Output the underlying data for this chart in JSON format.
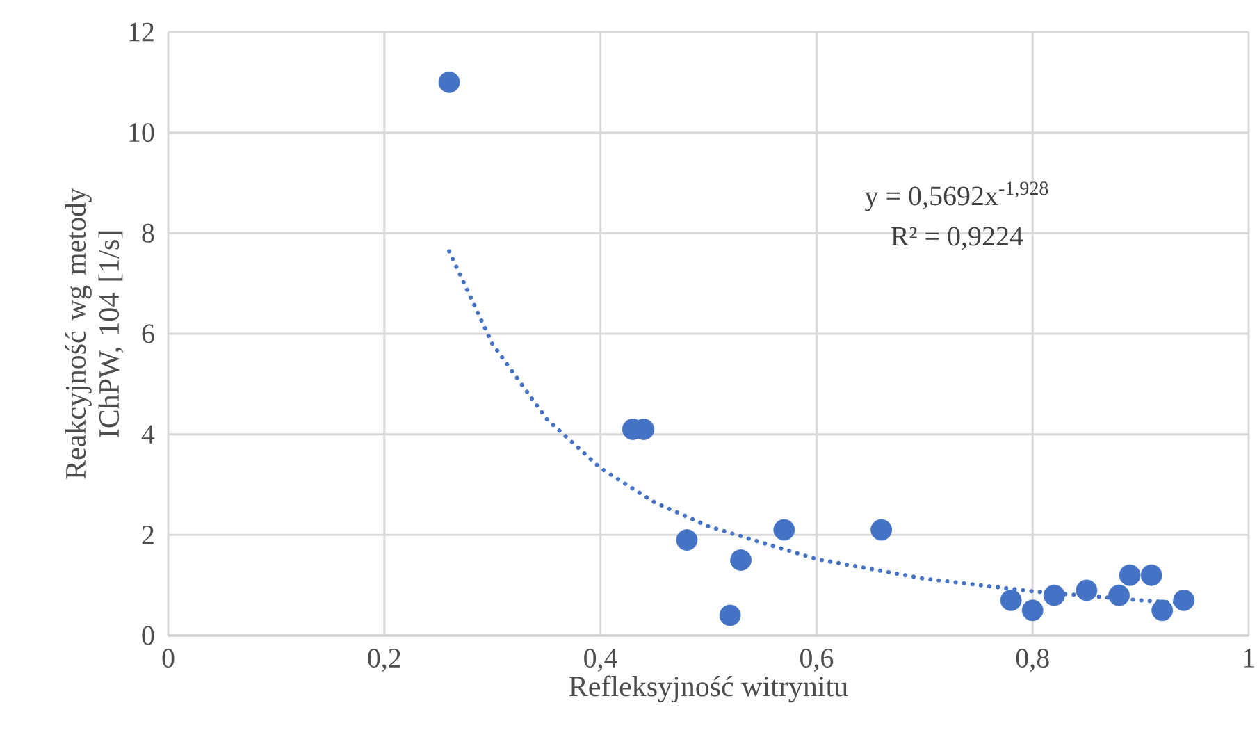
{
  "chart_data": {
    "type": "scatter",
    "xlabel": "Refleksyjność witrynitu",
    "ylabel": "Reakcyjność wg metody IChPW, 104 [1/s]",
    "xlim": [
      0,
      1
    ],
    "ylim": [
      0,
      12
    ],
    "xticks": [
      0,
      {
        "value": 0.2,
        "label": "0,2"
      },
      {
        "value": 0.4,
        "label": "0,4"
      },
      {
        "value": 0.6,
        "label": "0,6"
      },
      {
        "value": 0.8,
        "label": "0,8"
      },
      1
    ],
    "yticks": [
      0,
      2,
      4,
      6,
      8,
      10,
      12
    ],
    "grid": true,
    "annotations": [
      "y = 0,5692x$^{-1,928}$",
      "R² = 0,9224"
    ],
    "series": [
      {
        "color": "#4472c4",
        "marker": "circle",
        "x": [
          0.26,
          0.43,
          0.44,
          0.48,
          0.52,
          0.53,
          0.57,
          0.66,
          0.78,
          0.8,
          0.82,
          0.85,
          0.88,
          0.89,
          0.91,
          0.92,
          0.94
        ],
        "values": [
          11,
          4.1,
          4.1,
          1.9,
          0.4,
          1.5,
          2.1,
          2.1,
          0.7,
          0.5,
          0.8,
          0.9,
          0.8,
          1.2,
          1.2,
          0.5,
          0.7
        ]
      },
      {
        "type": "line",
        "color": "#4472c4",
        "marker": "none",
        "line_style": "dotted",
        "x": [
          0.26,
          0.3,
          0.35,
          0.4,
          0.45,
          0.5,
          0.6,
          0.7,
          0.8,
          0.9,
          0.94
        ],
        "values": [
          7.64,
          5.8,
          4.31,
          3.33,
          2.65,
          2.17,
          1.52,
          1.13,
          0.88,
          0.7,
          0.64
        ]
      }
    ]
  }
}
